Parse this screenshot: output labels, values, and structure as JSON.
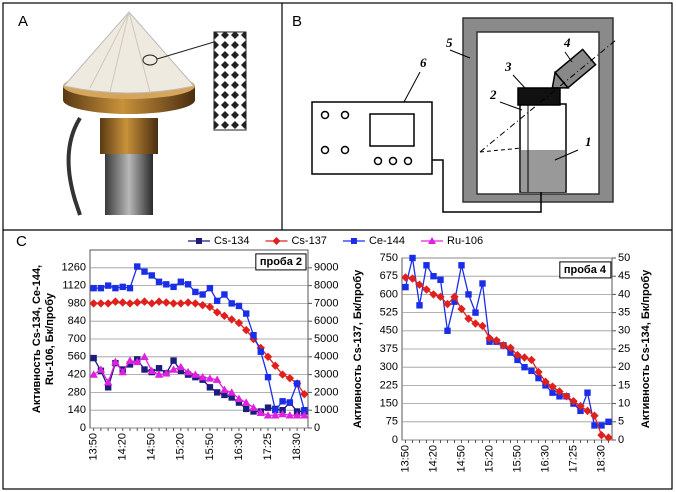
{
  "panels": {
    "a": {
      "label": "A"
    },
    "b": {
      "label": "B",
      "labels": [
        "1",
        "2",
        "3",
        "4",
        "5",
        "6"
      ]
    },
    "c": {
      "label": "C"
    }
  },
  "chart_data": [
    {
      "type": "line",
      "annotation": "проба 2",
      "ylabel": [
        "Активность Cs-134, Ce-144,",
        "Ru-106, Бк/пробу"
      ],
      "categories": [
        "13:50",
        null,
        null,
        null,
        "14:20",
        null,
        null,
        null,
        "14:50",
        null,
        null,
        null,
        "15:20",
        null,
        null,
        null,
        "15:50",
        null,
        null,
        null,
        "16:30",
        null,
        null,
        null,
        "17:25",
        null,
        null,
        null,
        "18:30",
        null
      ],
      "ylim": [
        0,
        1400
      ],
      "yticks": [
        0,
        140,
        280,
        420,
        560,
        700,
        840,
        980,
        1120,
        1260
      ],
      "y2lim": [
        0,
        10000
      ],
      "y2ticks": [
        0,
        1000,
        2000,
        3000,
        4000,
        5000,
        6000,
        7000,
        8000,
        9000
      ],
      "grid": true,
      "series": [
        {
          "name": "Cs-134",
          "color": "#1c1c7c",
          "marker": "square",
          "values": [
            550,
            450,
            320,
            510,
            460,
            500,
            540,
            460,
            440,
            470,
            430,
            530,
            450,
            420,
            400,
            380,
            320,
            280,
            260,
            240,
            200,
            150,
            130,
            130,
            160,
            150,
            140,
            200,
            130,
            130
          ]
        },
        {
          "name": "Cs-137",
          "color": "#e0201c",
          "marker": "diamond",
          "axis": "y2",
          "values": [
            7000,
            7000,
            7000,
            7100,
            7050,
            7000,
            7050,
            7100,
            7000,
            7100,
            7050,
            7000,
            7000,
            7050,
            7000,
            6900,
            6800,
            6500,
            6300,
            6100,
            5900,
            5500,
            5000,
            4500,
            4000,
            3500,
            3000,
            2800,
            2500,
            1900
          ]
        },
        {
          "name": "Ce-144",
          "color": "#1a2ee8",
          "marker": "square",
          "values": [
            1100,
            1100,
            1120,
            1100,
            1110,
            1100,
            1270,
            1230,
            1200,
            1150,
            1130,
            1110,
            1150,
            1130,
            1070,
            1050,
            1100,
            1000,
            1050,
            980,
            960,
            900,
            730,
            600,
            400,
            140,
            210,
            200,
            350,
            140
          ]
        },
        {
          "name": "Ru-106",
          "color": "#e020e0",
          "marker": "triangle",
          "values": [
            420,
            460,
            360,
            520,
            440,
            530,
            520,
            560,
            450,
            420,
            430,
            460,
            480,
            440,
            420,
            400,
            390,
            380,
            300,
            280,
            230,
            200,
            160,
            120,
            100,
            100,
            110,
            100,
            100,
            100
          ]
        }
      ]
    },
    {
      "type": "line",
      "annotation": "проба 4",
      "ylabel": [
        "Активность Cs-137, Бк/пробу"
      ],
      "y2label": "Активность Cs-134, Бк/пробу",
      "categories": [
        "13:50",
        null,
        null,
        null,
        "14:20",
        null,
        null,
        null,
        "14:50",
        null,
        null,
        null,
        "15:20",
        null,
        null,
        null,
        "15:50",
        null,
        null,
        null,
        "16:30",
        null,
        null,
        null,
        "17:25",
        null,
        null,
        null,
        "18:30",
        null
      ],
      "ylim": [
        0,
        750
      ],
      "yticks": [
        0,
        75,
        150,
        225,
        300,
        375,
        450,
        525,
        600,
        675,
        750
      ],
      "y2lim": [
        0,
        50
      ],
      "y2ticks": [
        0,
        5,
        10,
        15,
        20,
        25,
        30,
        35,
        40,
        45,
        50
      ],
      "grid": true,
      "series": [
        {
          "color": "#1a2ee8",
          "marker": "square",
          "axis": "y2",
          "values": [
            42,
            50,
            37,
            48,
            45,
            44,
            30,
            38,
            48,
            40,
            35,
            43,
            27,
            27,
            26,
            24,
            22,
            20,
            19,
            17,
            15,
            13,
            12,
            12,
            10,
            8,
            13,
            4,
            4,
            5
          ]
        },
        {
          "color": "#e0201c",
          "marker": "diamond",
          "values": [
            670,
            665,
            640,
            620,
            600,
            590,
            560,
            590,
            540,
            500,
            480,
            470,
            420,
            410,
            390,
            380,
            350,
            340,
            330,
            280,
            240,
            220,
            200,
            180,
            160,
            140,
            120,
            100,
            20,
            10
          ]
        }
      ]
    }
  ]
}
